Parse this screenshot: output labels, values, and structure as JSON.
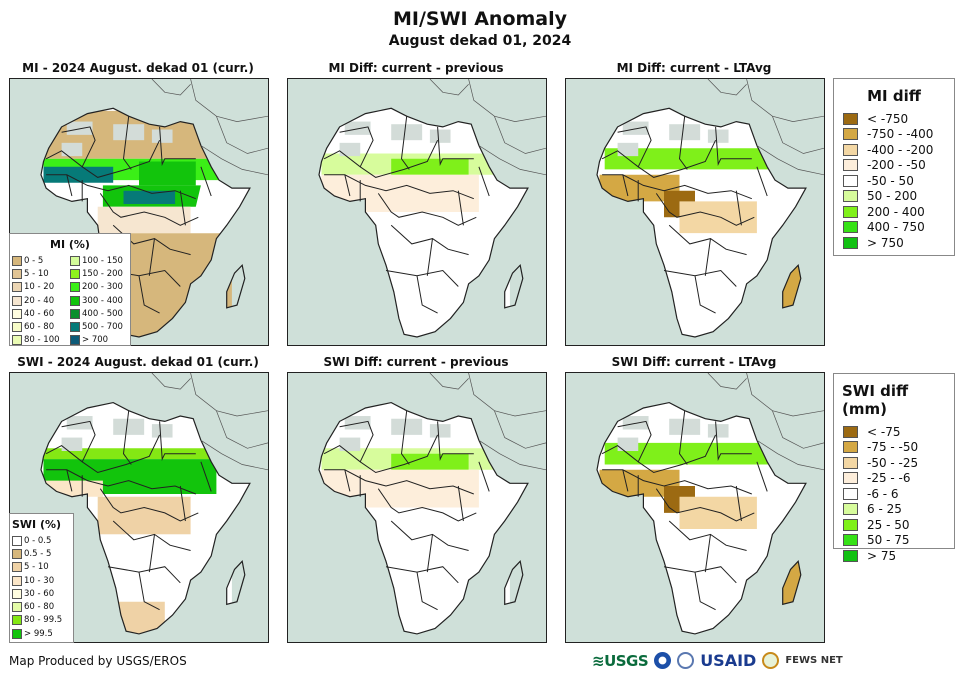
{
  "header": {
    "title": "MI/SWI Anomaly",
    "subtitle": "August dekad 01, 2024"
  },
  "panels": [
    {
      "id": "mi-curr",
      "title": "MI - 2024 August. dekad 01 (curr.)",
      "variable": "MI",
      "mode": "current"
    },
    {
      "id": "mi-prev",
      "title": "MI Diff: current - previous",
      "variable": "MI",
      "mode": "diff-previous"
    },
    {
      "id": "mi-ltavg",
      "title": "MI Diff: current - LTAvg",
      "variable": "MI",
      "mode": "diff-ltavg"
    },
    {
      "id": "swi-curr",
      "title": "SWI - 2024 August. dekad 01 (curr.)",
      "variable": "SWI",
      "mode": "current"
    },
    {
      "id": "swi-prev",
      "title": "SWI Diff: current - previous",
      "variable": "SWI",
      "mode": "diff-previous"
    },
    {
      "id": "swi-ltavg",
      "title": "SWI Diff: current - LTAvg",
      "variable": "SWI",
      "mode": "diff-ltavg"
    }
  ],
  "legends": {
    "mi_pct": {
      "title": "MI (%)",
      "items": [
        {
          "label": "0 - 5",
          "color": "#d6b77c"
        },
        {
          "label": "5 - 10",
          "color": "#e1c494"
        },
        {
          "label": "10 - 20",
          "color": "#ecd6b4"
        },
        {
          "label": "20 - 40",
          "color": "#f6e6d0"
        },
        {
          "label": "40 - 60",
          "color": "#fffde0"
        },
        {
          "label": "60 - 80",
          "color": "#f7fcc8"
        },
        {
          "label": "80 - 100",
          "color": "#eafbb4"
        },
        {
          "label": "100 - 150",
          "color": "#d4fc9a"
        },
        {
          "label": "150 - 200",
          "color": "#8ff21c"
        },
        {
          "label": "200 - 300",
          "color": "#3bef17"
        },
        {
          "label": "300 - 400",
          "color": "#12c40c"
        },
        {
          "label": "400 - 500",
          "color": "#0a8f2c"
        },
        {
          "label": "500 - 700",
          "color": "#067a78"
        },
        {
          "label": "> 700",
          "color": "#0d5a78"
        }
      ]
    },
    "swi_pct": {
      "title": "SWI (%)",
      "items": [
        {
          "label": "0 - 0.5",
          "color": "#ffffff"
        },
        {
          "label": "0.5 - 5",
          "color": "#d6b77c"
        },
        {
          "label": "5 - 10",
          "color": "#efd2a6"
        },
        {
          "label": "10 - 30",
          "color": "#fbe6c8"
        },
        {
          "label": "30 - 60",
          "color": "#fffde0"
        },
        {
          "label": "60 - 80",
          "color": "#e4fca8"
        },
        {
          "label": "80 - 99.5",
          "color": "#84e814"
        },
        {
          "label": "> 99.5",
          "color": "#12c40c"
        }
      ]
    },
    "mi_diff": {
      "title": "MI diff",
      "items": [
        {
          "label": "< -750",
          "color": "#9c6a12"
        },
        {
          "label": "-750 - -400",
          "color": "#d4a844"
        },
        {
          "label": "-400 - -200",
          "color": "#f3d7a4"
        },
        {
          "label": "-200 - -50",
          "color": "#fdeedb"
        },
        {
          "label": "-50 - 50",
          "color": "#ffffff"
        },
        {
          "label": "50 - 200",
          "color": "#d7fc9c"
        },
        {
          "label": "200 - 400",
          "color": "#7ff01a"
        },
        {
          "label": "400 - 750",
          "color": "#36e216"
        },
        {
          "label": "> 750",
          "color": "#11c112"
        }
      ]
    },
    "swi_diff": {
      "title": "SWI diff (mm)",
      "items": [
        {
          "label": "< -75",
          "color": "#9c6a12"
        },
        {
          "label": "-75 - -50",
          "color": "#d4a844"
        },
        {
          "label": "-50 - -25",
          "color": "#f3d7a4"
        },
        {
          "label": "-25 - -6",
          "color": "#fdeedb"
        },
        {
          "label": "-6 - 6",
          "color": "#ffffff"
        },
        {
          "label": "6 - 25",
          "color": "#d7fc9c"
        },
        {
          "label": "25 - 50",
          "color": "#7ff01a"
        },
        {
          "label": "50 - 75",
          "color": "#36e216"
        },
        {
          "label": "> 75",
          "color": "#11c112"
        }
      ]
    }
  },
  "colors": {
    "ocean": "#cfe0d9",
    "no_data": "#d3dcd8",
    "border": "#222222"
  },
  "footer": {
    "credit": "Map Produced by USGS/EROS",
    "logos": [
      "USGS",
      "NOAA",
      "DOC",
      "USAID",
      "FEWS NET"
    ],
    "usgs_label": "USGS",
    "usaid_label": "USAID",
    "fews_label": "FEWS NET"
  }
}
